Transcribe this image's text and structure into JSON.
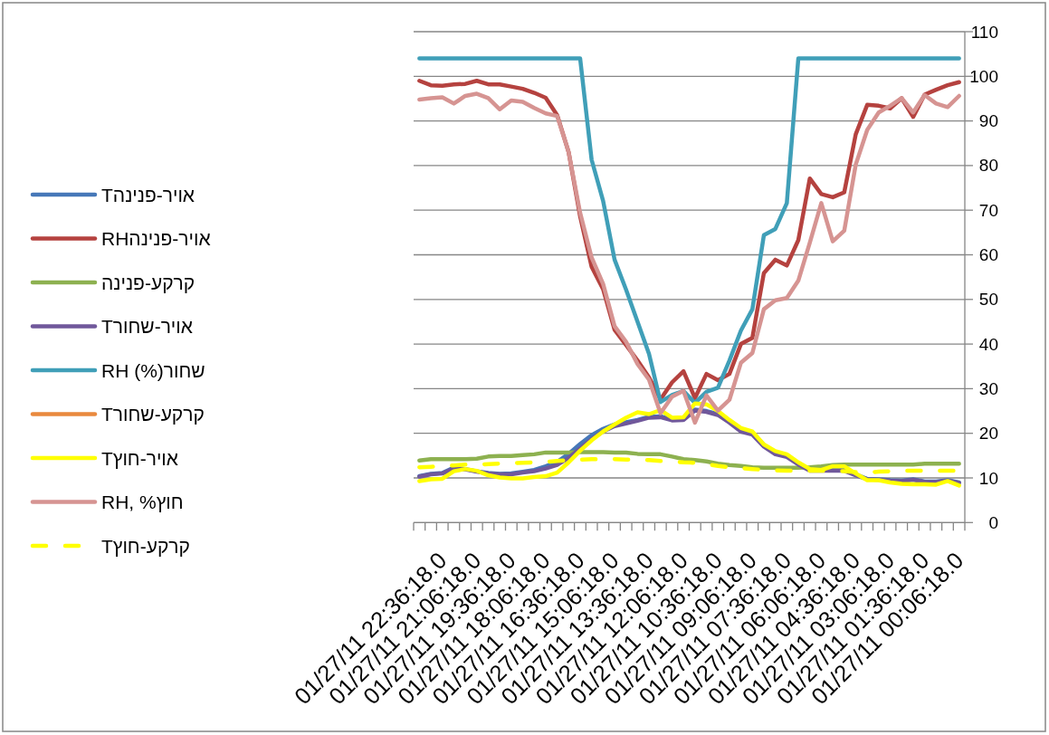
{
  "chart_data": {
    "type": "line",
    "categories": [
      null,
      null,
      "01/27/11 22:36:18.0",
      null,
      null,
      "01/27/11 21:06:18.0",
      null,
      null,
      "01/27/11 19:36:18.0",
      null,
      null,
      "01/27/11 18:06:18.0",
      null,
      null,
      "01/27/11 16:36:18.0",
      null,
      null,
      "01/27/11 15:06:18.0",
      null,
      null,
      "01/27/11 13:36:18.0",
      null,
      null,
      "01/27/11 12:06:18.0",
      null,
      null,
      "01/27/11 10:36:18.0",
      null,
      null,
      "01/27/11 09:06:18.0",
      null,
      null,
      "01/27/11 07:36:18.0",
      null,
      null,
      "01/27/11 06:06:18.0",
      null,
      null,
      "01/27/11 04:36:18.0",
      null,
      null,
      "01/27/11 03:06:18.0",
      null,
      null,
      "01/27/11 01:36:18.0",
      null,
      null,
      "01/27/11 00:06:18.0"
    ],
    "series": [
      {
        "name": "Tאויר-פנינה",
        "color": "#4678b8",
        "values": [
          10.4,
          10.9,
          11.1,
          12.3,
          12.0,
          11.5,
          11.1,
          10.9,
          11.0,
          11.4,
          11.8,
          12.6,
          13.6,
          15.4,
          17.6,
          19.6,
          21.0,
          22.0,
          22.5,
          23.0,
          23.7,
          23.8,
          23.1,
          23.2,
          25.3,
          25.0,
          24.3,
          22.8,
          21.0,
          20.2,
          17.4,
          15.6,
          14.9,
          13.2,
          11.8,
          11.9,
          11.9,
          11.9,
          10.8,
          9.8,
          9.7,
          9.5,
          9.4,
          9.7,
          9.2,
          9.2,
          9.5,
          9.0
        ]
      },
      {
        "name": "RHאויר-פנינה",
        "color": "#b5423f",
        "values": [
          99.0,
          98.0,
          97.9,
          98.2,
          98.3,
          99.0,
          98.2,
          98.2,
          97.7,
          97.2,
          96.3,
          95.2,
          91.3,
          83.0,
          68.6,
          57.3,
          52.3,
          43.2,
          39.8,
          36.3,
          32.5,
          27.6,
          31.4,
          33.9,
          27.9,
          33.3,
          31.9,
          33.3,
          40.0,
          41.4,
          55.9,
          58.9,
          57.6,
          63.3,
          77.1,
          73.6,
          72.9,
          74.0,
          87.0,
          93.6,
          93.4,
          92.8,
          95.1,
          90.9,
          95.9,
          97.0,
          98.0,
          98.7
        ]
      },
      {
        "name": "קרקע-פנינה",
        "color": "#8db150",
        "values": [
          13.9,
          14.2,
          14.2,
          14.2,
          14.2,
          14.3,
          14.8,
          14.9,
          14.9,
          15.1,
          15.3,
          15.7,
          15.7,
          15.7,
          15.8,
          15.8,
          15.8,
          15.7,
          15.7,
          15.4,
          15.3,
          15.3,
          14.8,
          14.2,
          14.0,
          13.7,
          13.2,
          12.9,
          12.7,
          12.4,
          12.3,
          12.3,
          12.3,
          12.3,
          12.4,
          12.6,
          12.9,
          13.0,
          13.0,
          13.0,
          13.0,
          13.0,
          13.0,
          13.0,
          13.2,
          13.2,
          13.2,
          13.2
        ]
      },
      {
        "name": "Tאויר-שחור",
        "color": "#70589b",
        "values": [
          10.3,
          10.8,
          11.0,
          12.1,
          11.9,
          11.4,
          11.0,
          10.8,
          10.8,
          11.2,
          11.5,
          12.1,
          12.9,
          14.5,
          16.6,
          18.7,
          20.4,
          21.6,
          22.2,
          22.8,
          23.5,
          23.6,
          22.9,
          23.0,
          25.1,
          24.8,
          24.1,
          22.4,
          20.4,
          19.7,
          17.0,
          15.3,
          14.7,
          13.0,
          11.6,
          11.6,
          11.6,
          11.6,
          10.6,
          9.7,
          9.6,
          9.4,
          9.3,
          9.6,
          9.1,
          9.1,
          9.4,
          8.9
        ]
      },
      {
        "name": "RH (%)שחור",
        "color": "#409fb8",
        "values": [
          104,
          104,
          104,
          104,
          104,
          104,
          104,
          104,
          104,
          104,
          104,
          104,
          104,
          104,
          104,
          81.3,
          72.1,
          58.9,
          52.2,
          45.0,
          37.8,
          27.0,
          28.6,
          29.5,
          26.8,
          29.3,
          30.2,
          36.3,
          43.0,
          47.8,
          64.4,
          65.8,
          71.6,
          104,
          104,
          104,
          104,
          104,
          104,
          104,
          104,
          104,
          104,
          104,
          104,
          104,
          104,
          104
        ]
      },
      {
        "name": "Tקרקע-שחור",
        "color": "#e9893e",
        "values": [
          null,
          null,
          null,
          null,
          null,
          null,
          null,
          null,
          null,
          null,
          null,
          null,
          null,
          null,
          null,
          null,
          null,
          null,
          null,
          null,
          null,
          null,
          null,
          null,
          null,
          null,
          null,
          null,
          null,
          null,
          null,
          null,
          null,
          null,
          null,
          null,
          null,
          null,
          null,
          null,
          null,
          null,
          null,
          null,
          null,
          null,
          null,
          null
        ]
      },
      {
        "name": "Tאויר-חוץ",
        "color": "#ffff00",
        "values": [
          9.3,
          9.7,
          9.8,
          11.5,
          12.0,
          11.6,
          10.6,
          10.1,
          9.9,
          9.9,
          10.2,
          10.4,
          11.2,
          13.5,
          16.1,
          18.4,
          20.4,
          22.0,
          23.5,
          24.7,
          24.3,
          25.2,
          23.5,
          23.6,
          26.7,
          26.5,
          25.0,
          23.0,
          21.2,
          20.4,
          17.5,
          16.0,
          15.3,
          13.5,
          12.0,
          11.8,
          12.6,
          12.6,
          11.0,
          9.5,
          9.5,
          9.0,
          8.7,
          8.6,
          8.6,
          8.5,
          9.3,
          8.3
        ]
      },
      {
        "name": "RH, %חוץ",
        "color": "#d69492",
        "values": [
          94.8,
          95.1,
          95.3,
          93.9,
          95.6,
          96.1,
          95.1,
          92.6,
          94.6,
          94.3,
          92.9,
          91.7,
          91.1,
          83.0,
          69.4,
          59.4,
          53.5,
          44.0,
          40.5,
          35.5,
          32.0,
          24.5,
          28.2,
          29.5,
          22.4,
          28.5,
          25.1,
          27.5,
          35.8,
          38.0,
          47.8,
          49.8,
          50.3,
          54.2,
          62.7,
          71.6,
          63.0,
          65.4,
          80.2,
          88.0,
          91.9,
          93.4,
          95.1,
          91.9,
          95.8,
          93.9,
          93.1,
          95.6
        ]
      },
      {
        "name": "Tקרקע-חוץ",
        "color": "#ffff00",
        "line_style": "dashed",
        "values": [
          12.4,
          12.5,
          12.6,
          12.8,
          13.0,
          13.0,
          13.1,
          13.2,
          13.3,
          13.4,
          13.5,
          13.6,
          13.8,
          14.0,
          14.1,
          14.2,
          14.2,
          14.2,
          14.1,
          14.1,
          14.0,
          13.8,
          13.7,
          13.5,
          13.4,
          13.1,
          12.7,
          12.4,
          12.2,
          12.0,
          11.8,
          11.7,
          11.6,
          11.6,
          11.6,
          11.6,
          11.6,
          11.5,
          11.3,
          11.2,
          11.4,
          11.5,
          11.6,
          11.6,
          11.6,
          11.6,
          11.6,
          11.6
        ]
      }
    ],
    "ylim": [
      0,
      110
    ],
    "yticks": [
      0,
      10,
      20,
      30,
      40,
      50,
      60,
      70,
      80,
      90,
      100,
      110
    ],
    "grid": "y",
    "legend": "left"
  }
}
